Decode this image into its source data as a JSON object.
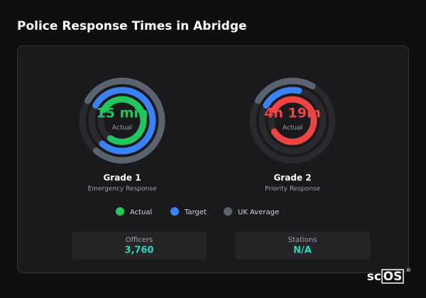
{
  "header": {
    "title": "Police Response Times in Abridge"
  },
  "gauges": [
    {
      "name": "Grade 1",
      "subtitle": "Emergency Response",
      "center_value": "15 min",
      "center_label": "Actual",
      "center_color": "#22c55e",
      "rings": [
        {
          "name": "UK Average",
          "color": "#5b6270",
          "value": 78
        },
        {
          "name": "Target",
          "color": "#3b82f6",
          "value": 78
        },
        {
          "name": "Actual",
          "color": "#22c55e",
          "value": 76
        }
      ]
    },
    {
      "name": "Grade 2",
      "subtitle": "Priority Response",
      "center_value": "4h 19m",
      "center_label": "Actual",
      "center_color": "#ef4444",
      "rings": [
        {
          "name": "UK Average",
          "color": "#5b6270",
          "value": 25
        },
        {
          "name": "Target",
          "color": "#3b82f6",
          "value": 20
        },
        {
          "name": "Actual",
          "color": "#ef4444",
          "value": 83
        }
      ]
    }
  ],
  "legend": [
    {
      "name": "Actual",
      "color": "#22c55e"
    },
    {
      "name": "Target",
      "color": "#3b82f6"
    },
    {
      "name": "UK Average",
      "color": "#5b6270"
    }
  ],
  "stats": [
    {
      "label": "Officers",
      "value": "3,760"
    },
    {
      "label": "Stations",
      "value": "N/A"
    }
  ],
  "logo": {
    "prefix": "sc",
    "boxed": "OS",
    "mark": "®"
  }
}
